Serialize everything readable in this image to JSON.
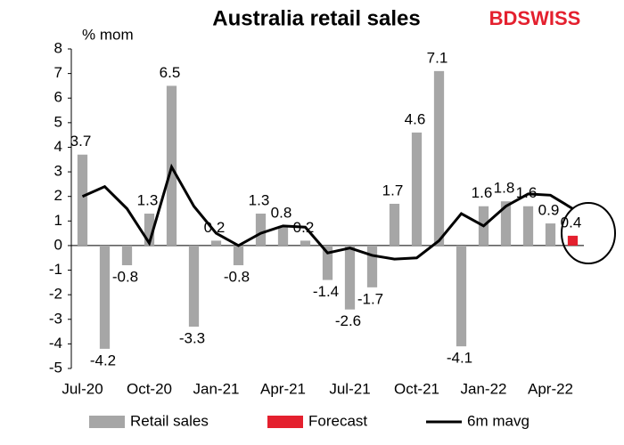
{
  "chart_data": {
    "type": "bar",
    "title": "Australia retail sales",
    "brand": "BDSWISS",
    "y_label": "% mom",
    "categories": [
      "Jul-20",
      null,
      null,
      "Oct-20",
      null,
      null,
      "Jan-21",
      null,
      null,
      "Apr-21",
      null,
      null,
      "Jul-21",
      null,
      null,
      "Oct-21",
      null,
      null,
      "Jan-22",
      null,
      null,
      "Apr-22",
      null
    ],
    "series": [
      {
        "name": "Retail sales",
        "type": "bar",
        "color": "#a6a6a6",
        "values": [
          3.7,
          -4.2,
          -0.8,
          1.3,
          6.5,
          -3.3,
          0.2,
          -0.8,
          1.3,
          0.8,
          0.2,
          -1.4,
          -2.6,
          -1.7,
          1.7,
          4.6,
          7.1,
          -4.1,
          1.6,
          1.8,
          1.6,
          0.9,
          null
        ]
      },
      {
        "name": "Forecast",
        "type": "bar",
        "color": "#e4202e",
        "values": [
          null,
          null,
          null,
          null,
          null,
          null,
          null,
          null,
          null,
          null,
          null,
          null,
          null,
          null,
          null,
          null,
          null,
          null,
          null,
          null,
          null,
          null,
          0.4
        ]
      },
      {
        "name": "6m mavg",
        "type": "line",
        "color": "#000000",
        "values": [
          2.0,
          2.4,
          1.5,
          0.1,
          3.2,
          1.6,
          0.5,
          0.0,
          0.5,
          0.8,
          0.75,
          -0.3,
          -0.1,
          -0.4,
          -0.55,
          -0.5,
          0.2,
          1.3,
          0.8,
          1.6,
          2.1,
          2.05,
          1.5
        ]
      }
    ],
    "ylim": [
      -5,
      8
    ],
    "yticks": [
      -5,
      -4,
      -3,
      -2,
      -1,
      0,
      1,
      2,
      3,
      4,
      5,
      6,
      7,
      8
    ]
  }
}
